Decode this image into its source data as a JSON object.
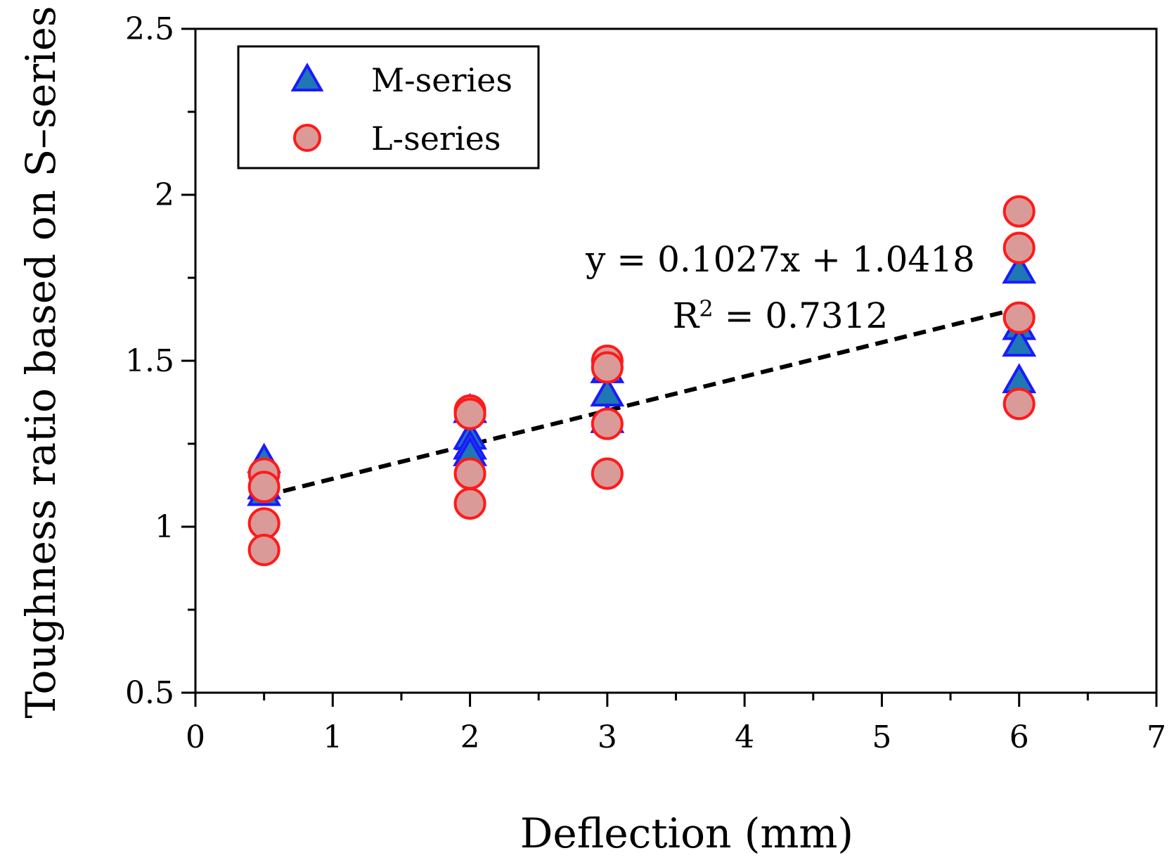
{
  "chart_data": {
    "type": "scatter",
    "title": "",
    "xlabel": "Deflection (mm)",
    "ylabel": "Toughness ratio based on S–series",
    "xlim": [
      0,
      7
    ],
    "ylim": [
      0.5,
      2.5
    ],
    "x_major_ticks": [
      0,
      1,
      2,
      3,
      4,
      5,
      6,
      7
    ],
    "x_minor_ticks": [
      0.5,
      1.5,
      2.5,
      3.5,
      4.5,
      5.5,
      6.5
    ],
    "y_major_ticks": [
      0.5,
      1,
      1.5,
      2,
      2.5
    ],
    "y_minor_ticks": [
      0.75,
      1.25,
      1.75,
      2.25
    ],
    "x_tick_labels": [
      "0",
      "1",
      "2",
      "3",
      "4",
      "5",
      "6",
      "7"
    ],
    "y_tick_labels": [
      "0.5",
      "1",
      "1.5",
      "2",
      "2.5"
    ],
    "grid": false,
    "legend_position": "top-left",
    "series": [
      {
        "name": "M-series",
        "marker": "triangle",
        "fill": "#1f77b4",
        "stroke": "#1a1aff",
        "x": [
          0.5,
          0.5,
          0.5,
          2,
          2,
          2,
          2,
          3,
          3,
          3,
          6,
          6,
          6,
          6
        ],
        "y": [
          1.2,
          1.12,
          1.1,
          1.35,
          1.27,
          1.24,
          1.22,
          1.47,
          1.4,
          1.32,
          1.77,
          1.6,
          1.55,
          1.44
        ]
      },
      {
        "name": "L-series",
        "marker": "circle",
        "fill": "#d99a98",
        "stroke": "#ff1a1a",
        "x": [
          0.5,
          0.5,
          0.5,
          0.5,
          2,
          2,
          2,
          2,
          3,
          3,
          3,
          3,
          6,
          6,
          6,
          6
        ],
        "y": [
          1.16,
          1.12,
          1.01,
          0.93,
          1.35,
          1.34,
          1.16,
          1.07,
          1.5,
          1.48,
          1.31,
          1.16,
          1.95,
          1.84,
          1.63,
          1.37
        ]
      }
    ],
    "trendline": {
      "style": "dashed",
      "color": "#000000",
      "slope": 0.1027,
      "intercept": 1.0418,
      "x_range": [
        0.5,
        6
      ],
      "equation": "y = 0.1027x + 1.0418",
      "r2_prefix": "R",
      "r2_sup": "2",
      "r2_rest": " = 0.7312"
    }
  }
}
